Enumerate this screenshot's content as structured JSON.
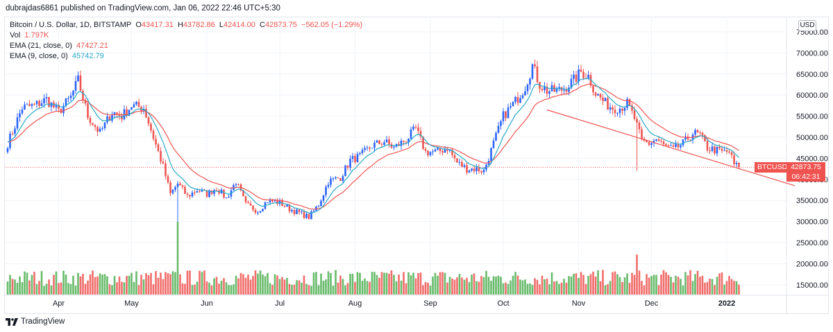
{
  "header": {
    "publish_line": "dubrajdas6861 published on TradingView.com, Jan 06, 2022 22:46 UTC+5:30"
  },
  "legend": {
    "symbol": "Bitcoin / U.S. Dollar, 1D, BITSTAMP",
    "open_label": "O",
    "open": "43417.31",
    "high_label": "H",
    "high": "43782.86",
    "low_label": "L",
    "low": "42414.00",
    "close_label": "C",
    "close": "42873.75",
    "change": "−562.05 (−1.29%)",
    "vol_label": "Vol",
    "vol": "1.797K",
    "ema21_label": "EMA (21, close, 0)",
    "ema21": "47427.21",
    "ema9_label": "EMA (9, close, 0)",
    "ema9": "45742.79"
  },
  "price_scale": {
    "currency": "USD",
    "ticker": "BTCUSD",
    "last_price": "42873.75",
    "countdown": "06:42:31"
  },
  "footer": {
    "brand": "TradingView"
  },
  "colors": {
    "up": "#26a69a",
    "candle_up": "#2962ff",
    "down": "#ef5350",
    "ema21": "#ef5350",
    "ema9": "#26a9c7",
    "trendline": "#ef5350",
    "vol_up": "#4caf50",
    "vol_down": "#ef5350"
  },
  "chart_data": {
    "type": "candlestick",
    "title": "Bitcoin / U.S. Dollar, 1D, BITSTAMP",
    "y_ticks": [
      "75000.00",
      "70000.00",
      "65000.00",
      "60000.00",
      "55000.00",
      "50000.00",
      "45000.00",
      "40000.00",
      "35000.00",
      "30000.00",
      "25000.00",
      "20000.00",
      "15000.00"
    ],
    "y_tick_values": [
      75000,
      70000,
      65000,
      60000,
      55000,
      50000,
      45000,
      40000,
      35000,
      30000,
      25000,
      20000,
      15000
    ],
    "ylim": [
      12500,
      77500
    ],
    "x_ticks": [
      {
        "label": "Apr",
        "day": 21
      },
      {
        "label": "May",
        "day": 51
      },
      {
        "label": "Jun",
        "day": 82
      },
      {
        "label": "Jul",
        "day": 112
      },
      {
        "label": "Aug",
        "day": 143
      },
      {
        "label": "Sep",
        "day": 174
      },
      {
        "label": "Oct",
        "day": 204
      },
      {
        "label": "Nov",
        "day": 235
      },
      {
        "label": "Dec",
        "day": 265
      },
      {
        "label": "2022",
        "day": 296
      }
    ],
    "x_range_days": [
      0,
      325
    ],
    "last_day": 301,
    "close_path": [
      [
        0,
        48500
      ],
      [
        6,
        57000
      ],
      [
        11,
        57500
      ],
      [
        16,
        59000
      ],
      [
        21,
        56000
      ],
      [
        26,
        59500
      ],
      [
        29,
        63500
      ],
      [
        33,
        55000
      ],
      [
        38,
        51000
      ],
      [
        43,
        56000
      ],
      [
        47,
        55000
      ],
      [
        51,
        57500
      ],
      [
        56,
        57000
      ],
      [
        60,
        50000
      ],
      [
        64,
        43000
      ],
      [
        67,
        36500
      ],
      [
        70,
        39000
      ],
      [
        74,
        36000
      ],
      [
        78,
        37500
      ],
      [
        82,
        36500
      ],
      [
        86,
        38000
      ],
      [
        90,
        35500
      ],
      [
        94,
        39500
      ],
      [
        98,
        34000
      ],
      [
        103,
        32500
      ],
      [
        107,
        35000
      ],
      [
        112,
        34500
      ],
      [
        116,
        33000
      ],
      [
        120,
        32000
      ],
      [
        124,
        31000
      ],
      [
        128,
        34000
      ],
      [
        132,
        39500
      ],
      [
        137,
        40500
      ],
      [
        141,
        44500
      ],
      [
        145,
        45500
      ],
      [
        150,
        48000
      ],
      [
        155,
        49000
      ],
      [
        159,
        47500
      ],
      [
        164,
        49500
      ],
      [
        168,
        52000
      ],
      [
        172,
        46500
      ],
      [
        177,
        46500
      ],
      [
        181,
        47500
      ],
      [
        185,
        44000
      ],
      [
        189,
        42500
      ],
      [
        193,
        42500
      ],
      [
        196,
        42000
      ],
      [
        200,
        48500
      ],
      [
        204,
        55000
      ],
      [
        209,
        58500
      ],
      [
        213,
        62000
      ],
      [
        216,
        67000
      ],
      [
        219,
        62500
      ],
      [
        222,
        61000
      ],
      [
        226,
        61000
      ],
      [
        229,
        61500
      ],
      [
        233,
        63500
      ],
      [
        236,
        65500
      ],
      [
        239,
        64500
      ],
      [
        242,
        60500
      ],
      [
        246,
        58000
      ],
      [
        249,
        57000
      ],
      [
        252,
        57000
      ],
      [
        255,
        58000
      ],
      [
        258,
        54500
      ],
      [
        261,
        49000
      ],
      [
        264,
        48500
      ],
      [
        267,
        49500
      ],
      [
        270,
        48000
      ],
      [
        274,
        47000
      ],
      [
        278,
        48500
      ],
      [
        282,
        51000
      ],
      [
        285,
        50500
      ],
      [
        288,
        47500
      ],
      [
        291,
        47000
      ],
      [
        294,
        46500
      ],
      [
        297,
        46500
      ],
      [
        299,
        43500
      ],
      [
        301,
        42873.75
      ]
    ],
    "ema21_last": 47427.21,
    "ema9_last": 45742.79,
    "volume_spikes": [
      {
        "day": 70,
        "value_rel": 1.0
      },
      {
        "day": 259,
        "value_rel": 0.55
      }
    ],
    "trendline": [
      {
        "day": 222,
        "price": 56500
      },
      {
        "day": 324,
        "price": 38500
      }
    ],
    "last_price_line": 42873.75
  }
}
